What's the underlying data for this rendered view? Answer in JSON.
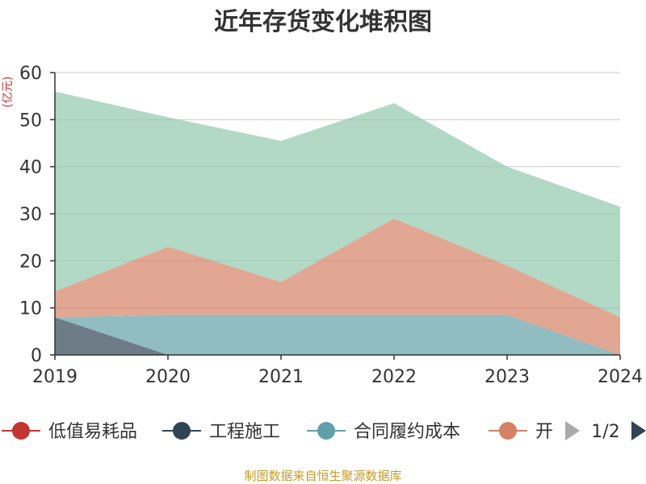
{
  "chart_data": {
    "type": "area",
    "stacked": true,
    "title": "近年存货变化堆积图",
    "ylabel": "(亿元)",
    "xlabel": "",
    "x": [
      "2019",
      "2020",
      "2021",
      "2022",
      "2023",
      "2024"
    ],
    "ylim": [
      0,
      60
    ],
    "yticks": [
      0,
      10,
      20,
      30,
      40,
      50,
      60
    ],
    "grid": true,
    "series": [
      {
        "name": "低值易耗品",
        "values": [
          0,
          0,
          0,
          0,
          0,
          0
        ],
        "color": "#c23531"
      },
      {
        "name": "工程施工",
        "values": [
          8,
          0,
          0,
          0,
          0,
          0
        ],
        "color": "#2f4554"
      },
      {
        "name": "合同履约成本",
        "values": [
          0,
          8.5,
          8.5,
          8.5,
          8.5,
          0
        ],
        "color": "#61a0a8"
      },
      {
        "name": "开",
        "values": [
          5.5,
          14.5,
          7,
          20.5,
          10.5,
          8
        ],
        "color": "#d48265"
      },
      {
        "name": "",
        "values": [
          42.5,
          27.5,
          30,
          24.5,
          21,
          23.5
        ],
        "color": "#91c7ae"
      }
    ],
    "legend": {
      "position": "bottom",
      "page": "1/2",
      "visible_count": 4
    }
  },
  "footer": {
    "source": "制图数据来自恒生聚源数据库"
  }
}
